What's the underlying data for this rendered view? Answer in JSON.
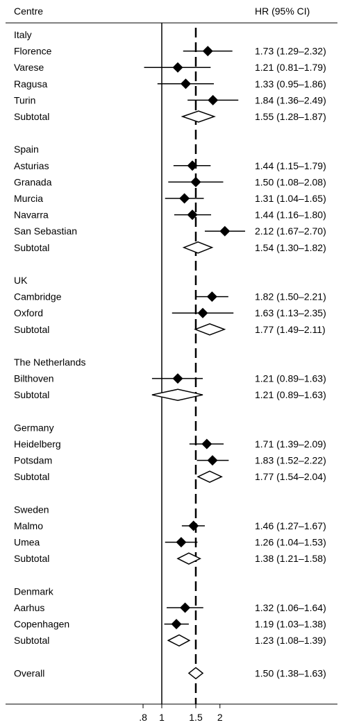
{
  "chart_data": {
    "type": "forest",
    "header": {
      "centre": "Centre",
      "hr": "HR (95% CI)"
    },
    "x_scale": "log",
    "reference_line": 1,
    "overall_line": 1.5,
    "xticks": [
      {
        "value": 0.8,
        "label": ".8"
      },
      {
        "value": 1,
        "label": "1"
      },
      {
        "value": 1.5,
        "label": "1.5"
      },
      {
        "value": 2,
        "label": "2"
      }
    ],
    "rows": [
      {
        "kind": "group",
        "label": "Italy"
      },
      {
        "kind": "study",
        "label": "Florence",
        "hr": 1.73,
        "lo": 1.29,
        "hi": 2.32,
        "text": "1.73 (1.29–2.32)"
      },
      {
        "kind": "study",
        "label": "Varese",
        "hr": 1.21,
        "lo": 0.81,
        "hi": 1.79,
        "text": "1.21 (0.81–1.79)"
      },
      {
        "kind": "study",
        "label": "Ragusa",
        "hr": 1.33,
        "lo": 0.95,
        "hi": 1.86,
        "text": "1.33 (0.95–1.86)"
      },
      {
        "kind": "study",
        "label": "Turin",
        "hr": 1.84,
        "lo": 1.36,
        "hi": 2.49,
        "text": "1.84 (1.36–2.49)"
      },
      {
        "kind": "subtotal",
        "label": "Subtotal",
        "hr": 1.55,
        "lo": 1.28,
        "hi": 1.87,
        "text": "1.55 (1.28–1.87)"
      },
      {
        "kind": "spacer"
      },
      {
        "kind": "group",
        "label": "Spain"
      },
      {
        "kind": "study",
        "label": "Asturias",
        "hr": 1.44,
        "lo": 1.15,
        "hi": 1.79,
        "text": "1.44 (1.15–1.79)"
      },
      {
        "kind": "study",
        "label": "Granada",
        "hr": 1.5,
        "lo": 1.08,
        "hi": 2.08,
        "text": "1.50 (1.08–2.08)"
      },
      {
        "kind": "study",
        "label": "Murcia",
        "hr": 1.31,
        "lo": 1.04,
        "hi": 1.65,
        "text": "1.31 (1.04–1.65)"
      },
      {
        "kind": "study",
        "label": "Navarra",
        "hr": 1.44,
        "lo": 1.16,
        "hi": 1.8,
        "text": "1.44 (1.16–1.80)"
      },
      {
        "kind": "study",
        "label": "San Sebastian",
        "hr": 2.12,
        "lo": 1.67,
        "hi": 2.7,
        "text": "2.12 (1.67–2.70)"
      },
      {
        "kind": "subtotal",
        "label": "Subtotal",
        "hr": 1.54,
        "lo": 1.3,
        "hi": 1.82,
        "text": "1.54 (1.30–1.82)"
      },
      {
        "kind": "spacer"
      },
      {
        "kind": "group",
        "label": "UK"
      },
      {
        "kind": "study",
        "label": "Cambridge",
        "hr": 1.82,
        "lo": 1.5,
        "hi": 2.21,
        "text": "1.82 (1.50–2.21)"
      },
      {
        "kind": "study",
        "label": "Oxford",
        "hr": 1.63,
        "lo": 1.13,
        "hi": 2.35,
        "text": "1.63 (1.13–2.35)"
      },
      {
        "kind": "subtotal",
        "label": "Subtotal",
        "hr": 1.77,
        "lo": 1.49,
        "hi": 2.11,
        "text": "1.77 (1.49–2.11)"
      },
      {
        "kind": "spacer"
      },
      {
        "kind": "group",
        "label": "The Netherlands"
      },
      {
        "kind": "study",
        "label": "Bilthoven",
        "hr": 1.21,
        "lo": 0.89,
        "hi": 1.63,
        "text": "1.21 (0.89–1.63)"
      },
      {
        "kind": "subtotal",
        "label": "Subtotal",
        "hr": 1.21,
        "lo": 0.89,
        "hi": 1.63,
        "text": "1.21 (0.89–1.63)"
      },
      {
        "kind": "spacer"
      },
      {
        "kind": "group",
        "label": "Germany"
      },
      {
        "kind": "study",
        "label": "Heidelberg",
        "hr": 1.71,
        "lo": 1.39,
        "hi": 2.09,
        "text": "1.71 (1.39–2.09)"
      },
      {
        "kind": "study",
        "label": "Potsdam",
        "hr": 1.83,
        "lo": 1.52,
        "hi": 2.22,
        "text": "1.83 (1.52–2.22)"
      },
      {
        "kind": "subtotal",
        "label": "Subtotal",
        "hr": 1.77,
        "lo": 1.54,
        "hi": 2.04,
        "text": "1.77 (1.54–2.04)"
      },
      {
        "kind": "spacer"
      },
      {
        "kind": "group",
        "label": "Sweden"
      },
      {
        "kind": "study",
        "label": "Malmo",
        "hr": 1.46,
        "lo": 1.27,
        "hi": 1.67,
        "text": "1.46 (1.27–1.67)"
      },
      {
        "kind": "study",
        "label": "Umea",
        "hr": 1.26,
        "lo": 1.04,
        "hi": 1.53,
        "text": "1.26 (1.04–1.53)"
      },
      {
        "kind": "subtotal",
        "label": "Subtotal",
        "hr": 1.38,
        "lo": 1.21,
        "hi": 1.58,
        "text": "1.38 (1.21–1.58)"
      },
      {
        "kind": "spacer"
      },
      {
        "kind": "group",
        "label": "Denmark"
      },
      {
        "kind": "study",
        "label": "Aarhus",
        "hr": 1.32,
        "lo": 1.06,
        "hi": 1.64,
        "text": "1.32 (1.06–1.64)"
      },
      {
        "kind": "study",
        "label": "Copenhagen",
        "hr": 1.19,
        "lo": 1.03,
        "hi": 1.38,
        "text": "1.19 (1.03–1.38)"
      },
      {
        "kind": "subtotal",
        "label": "Subtotal",
        "hr": 1.23,
        "lo": 1.08,
        "hi": 1.39,
        "text": "1.23 (1.08–1.39)"
      },
      {
        "kind": "spacer"
      },
      {
        "kind": "overall",
        "label": "Overall",
        "hr": 1.5,
        "lo": 1.38,
        "hi": 1.63,
        "text": "1.50 (1.38–1.63)"
      }
    ]
  }
}
